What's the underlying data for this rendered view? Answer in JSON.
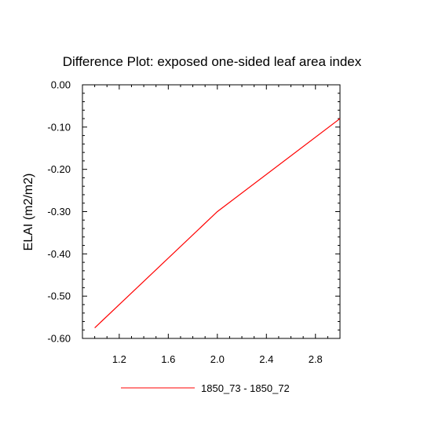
{
  "chart_data": {
    "type": "line",
    "title": "Difference Plot: exposed one-sided leaf area index",
    "xlabel": "",
    "ylabel": "ELAI  (m2/m2)",
    "xlim": [
      0.9,
      3.0
    ],
    "ylim": [
      -0.6,
      0.0
    ],
    "x_ticks": [
      1.2,
      1.6,
      2.0,
      2.4,
      2.8
    ],
    "x_tick_labels": [
      "1.2",
      "1.6",
      "2.0",
      "2.4",
      "2.8"
    ],
    "y_ticks": [
      0.0,
      -0.1,
      -0.2,
      -0.3,
      -0.4,
      -0.5,
      -0.6
    ],
    "y_tick_labels": [
      "0.00",
      "-0.10",
      "-0.20",
      "-0.30",
      "-0.40",
      "-0.50",
      "-0.60"
    ],
    "grid": false,
    "legend_position": "bottom",
    "series": [
      {
        "name": "1850_73 - 1850_72",
        "color": "#ff0000",
        "x": [
          1.0,
          2.0,
          3.0
        ],
        "y": [
          -0.575,
          -0.3,
          -0.08
        ]
      }
    ]
  }
}
